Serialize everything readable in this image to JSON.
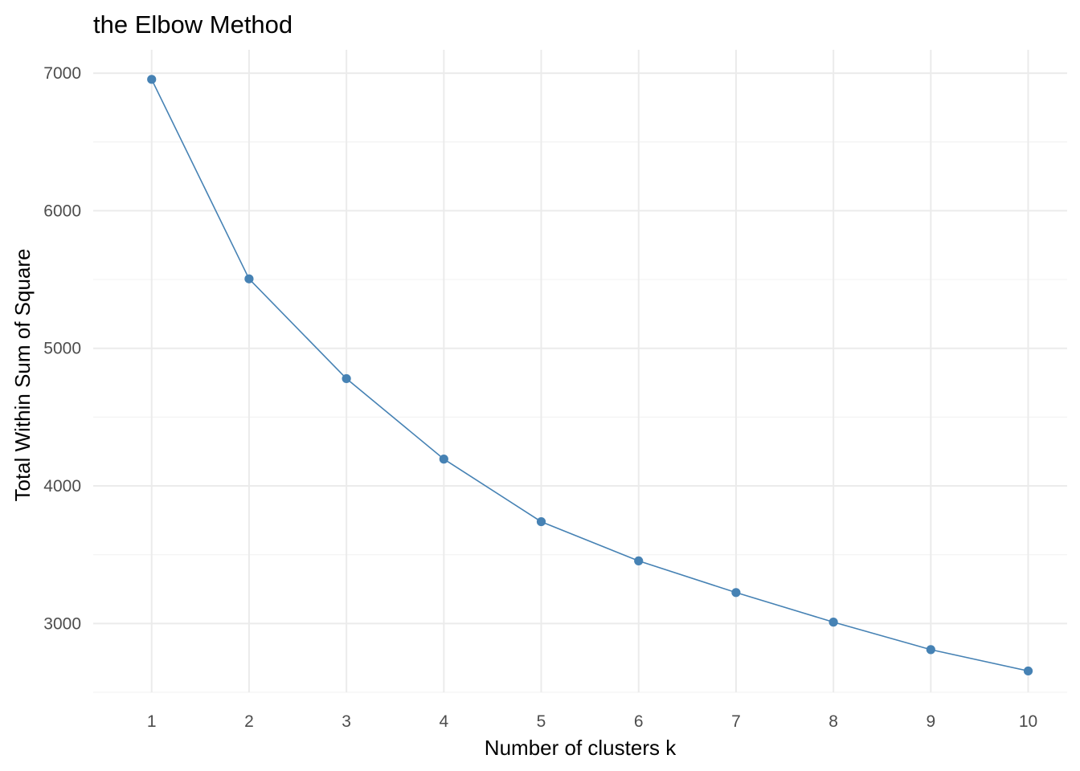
{
  "chart_data": {
    "type": "line",
    "title": "the Elbow Method",
    "xlabel": "Number of clusters k",
    "ylabel": "Total Within Sum of Square",
    "x": [
      1,
      2,
      3,
      4,
      5,
      6,
      7,
      8,
      9,
      10
    ],
    "x_ticks": [
      "1",
      "2",
      "3",
      "4",
      "5",
      "6",
      "7",
      "8",
      "9",
      "10"
    ],
    "y_ticks": [
      "3000",
      "4000",
      "5000",
      "6000",
      "7000"
    ],
    "y_tick_values": [
      3000,
      4000,
      5000,
      6000,
      7000
    ],
    "xlim": [
      0.4,
      10.4
    ],
    "ylim": [
      2500,
      7170
    ],
    "series": [
      {
        "values": [
          6955,
          5505,
          4780,
          4195,
          3740,
          3455,
          3225,
          3010,
          2810,
          2655
        ]
      }
    ],
    "grid": true,
    "legend": "none",
    "line_color": "#4682B4",
    "point_color": "#4682B4",
    "grid_color": "#EBEBEB"
  }
}
